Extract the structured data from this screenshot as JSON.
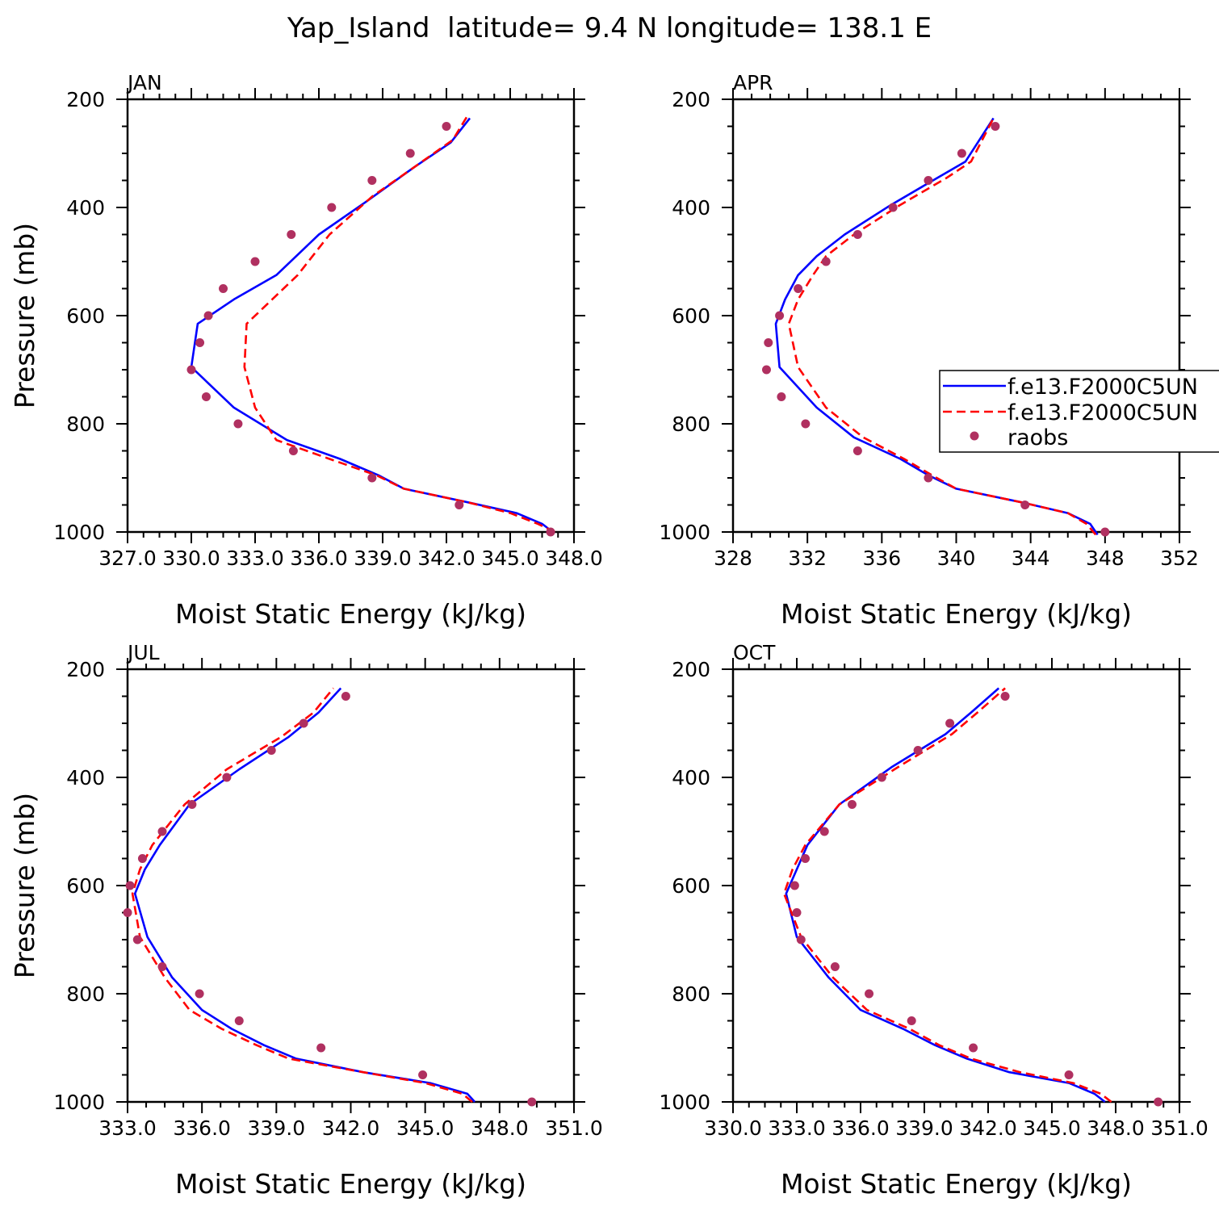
{
  "title": "Yap_Island  latitude= 9.4 N longitude= 138.1 E",
  "colors": {
    "model1": "#0000ff",
    "model2": "#ff0000",
    "raobs": "#b03060"
  },
  "legend": {
    "entries": [
      "f.e13.F2000C5UN",
      "f.e13.F2000C5UN",
      "raobs"
    ],
    "placement": "right of APR panel, partially clipped"
  },
  "chart_data": [
    {
      "type": "line",
      "panel": "JAN",
      "xlabel": "Moist Static Energy (kJ/kg)",
      "ylabel": "Pressure (mb)",
      "xlim": [
        327.0,
        348.0
      ],
      "ylim": [
        1000,
        200
      ],
      "x_ticks": [
        "327.0",
        "330.0",
        "333.0",
        "336.0",
        "339.0",
        "342.0",
        "345.0",
        "348.0"
      ],
      "y_ticks": [
        "200",
        "400",
        "600",
        "800",
        "1000"
      ],
      "series": [
        {
          "name": "f.e13.F2000C5UN",
          "style": "solid",
          "color": "#0000ff",
          "points": [
            [
              347.0,
              1000
            ],
            [
              346.5,
              985
            ],
            [
              345.3,
              965
            ],
            [
              343.0,
              945
            ],
            [
              340.0,
              920
            ],
            [
              338.8,
              895
            ],
            [
              337.0,
              865
            ],
            [
              334.5,
              830
            ],
            [
              332.0,
              770
            ],
            [
              330.0,
              695
            ],
            [
              330.3,
              615
            ],
            [
              332.0,
              570
            ],
            [
              334.0,
              525
            ],
            [
              336.0,
              450
            ],
            [
              338.2,
              390
            ],
            [
              340.5,
              325
            ],
            [
              342.2,
              280
            ],
            [
              343.1,
              235
            ]
          ]
        },
        {
          "name": "f.e13.F2000C5UN",
          "style": "dashed",
          "color": "#ff0000",
          "points": [
            [
              347.1,
              1000
            ],
            [
              346.3,
              985
            ],
            [
              345.0,
              965
            ],
            [
              343.0,
              945
            ],
            [
              340.0,
              920
            ],
            [
              338.7,
              895
            ],
            [
              336.5,
              865
            ],
            [
              334.0,
              830
            ],
            [
              333.0,
              770
            ],
            [
              332.5,
              695
            ],
            [
              332.6,
              615
            ],
            [
              333.8,
              570
            ],
            [
              335.0,
              525
            ],
            [
              336.5,
              450
            ],
            [
              338.5,
              380
            ],
            [
              340.5,
              325
            ],
            [
              342.3,
              275
            ],
            [
              343.0,
              230
            ]
          ]
        },
        {
          "name": "raobs",
          "style": "markers",
          "color": "#b03060",
          "points": [
            [
              346.9,
              1000
            ],
            [
              342.6,
              950
            ],
            [
              338.5,
              900
            ],
            [
              334.8,
              850
            ],
            [
              332.2,
              800
            ],
            [
              330.7,
              750
            ],
            [
              330.0,
              700
            ],
            [
              330.4,
              650
            ],
            [
              330.8,
              600
            ],
            [
              331.5,
              550
            ],
            [
              333.0,
              500
            ],
            [
              334.7,
              450
            ],
            [
              336.6,
              400
            ],
            [
              338.5,
              350
            ],
            [
              340.3,
              300
            ],
            [
              342.0,
              250
            ]
          ]
        }
      ]
    },
    {
      "type": "line",
      "panel": "APR",
      "xlabel": "Moist Static Energy (kJ/kg)",
      "ylabel": "",
      "xlim": [
        328,
        352
      ],
      "ylim": [
        1000,
        200
      ],
      "x_ticks": [
        "328",
        "332",
        "336",
        "340",
        "344",
        "348",
        "352"
      ],
      "y_ticks": [
        "200",
        "400",
        "600",
        "800",
        "1000"
      ],
      "series": [
        {
          "name": "f.e13.F2000C5UN",
          "style": "solid",
          "color": "#0000ff",
          "points": [
            [
              347.6,
              1005
            ],
            [
              347.2,
              985
            ],
            [
              346.0,
              965
            ],
            [
              343.5,
              945
            ],
            [
              340.0,
              920
            ],
            [
              338.5,
              895
            ],
            [
              337.0,
              865
            ],
            [
              334.5,
              825
            ],
            [
              332.5,
              770
            ],
            [
              330.5,
              695
            ],
            [
              330.3,
              615
            ],
            [
              330.8,
              570
            ],
            [
              331.5,
              525
            ],
            [
              332.5,
              490
            ],
            [
              334.0,
              450
            ],
            [
              336.5,
              395
            ],
            [
              339.0,
              345
            ],
            [
              340.5,
              315
            ],
            [
              342.0,
              235
            ]
          ]
        },
        {
          "name": "f.e13.F2000C5UN",
          "style": "dashed",
          "color": "#ff0000",
          "points": [
            [
              347.5,
              1005
            ],
            [
              347.0,
              985
            ],
            [
              346.0,
              965
            ],
            [
              343.5,
              945
            ],
            [
              340.0,
              920
            ],
            [
              338.7,
              895
            ],
            [
              337.2,
              865
            ],
            [
              335.0,
              825
            ],
            [
              333.0,
              770
            ],
            [
              331.5,
              695
            ],
            [
              331.0,
              615
            ],
            [
              331.5,
              570
            ],
            [
              332.3,
              525
            ],
            [
              333.0,
              490
            ],
            [
              334.5,
              450
            ],
            [
              337.0,
              395
            ],
            [
              339.5,
              345
            ],
            [
              340.8,
              315
            ],
            [
              342.0,
              235
            ]
          ]
        },
        {
          "name": "raobs",
          "style": "markers",
          "color": "#b03060",
          "points": [
            [
              348.0,
              1000
            ],
            [
              343.7,
              950
            ],
            [
              338.5,
              900
            ],
            [
              334.7,
              850
            ],
            [
              331.9,
              800
            ],
            [
              330.6,
              750
            ],
            [
              329.8,
              700
            ],
            [
              329.9,
              650
            ],
            [
              330.5,
              600
            ],
            [
              331.5,
              550
            ],
            [
              333.0,
              500
            ],
            [
              334.7,
              450
            ],
            [
              336.6,
              400
            ],
            [
              338.5,
              350
            ],
            [
              340.3,
              300
            ],
            [
              342.1,
              250
            ]
          ]
        }
      ]
    },
    {
      "type": "line",
      "panel": "JUL",
      "xlabel": "Moist Static Energy (kJ/kg)",
      "ylabel": "Pressure (mb)",
      "xlim": [
        333.0,
        351.0
      ],
      "ylim": [
        1000,
        200
      ],
      "x_ticks": [
        "333.0",
        "336.0",
        "339.0",
        "342.0",
        "345.0",
        "348.0",
        "351.0"
      ],
      "y_ticks": [
        "200",
        "400",
        "600",
        "800",
        "1000"
      ],
      "series": [
        {
          "name": "f.e13.F2000C5UN",
          "style": "solid",
          "color": "#0000ff",
          "points": [
            [
              347.0,
              1000
            ],
            [
              346.7,
              985
            ],
            [
              345.2,
              965
            ],
            [
              342.5,
              945
            ],
            [
              339.8,
              920
            ],
            [
              338.5,
              895
            ],
            [
              337.2,
              865
            ],
            [
              336.0,
              830
            ],
            [
              334.8,
              770
            ],
            [
              333.8,
              695
            ],
            [
              333.3,
              615
            ],
            [
              333.7,
              570
            ],
            [
              334.3,
              525
            ],
            [
              335.5,
              450
            ],
            [
              337.5,
              385
            ],
            [
              339.5,
              325
            ],
            [
              340.7,
              280
            ],
            [
              341.6,
              235
            ]
          ]
        },
        {
          "name": "f.e13.F2000C5UN",
          "style": "dashed",
          "color": "#ff0000",
          "points": [
            [
              346.9,
              1000
            ],
            [
              346.5,
              985
            ],
            [
              345.0,
              965
            ],
            [
              342.5,
              945
            ],
            [
              339.5,
              920
            ],
            [
              338.2,
              895
            ],
            [
              336.8,
              865
            ],
            [
              335.5,
              830
            ],
            [
              334.5,
              770
            ],
            [
              333.5,
              695
            ],
            [
              333.2,
              615
            ],
            [
              333.5,
              570
            ],
            [
              334.0,
              525
            ],
            [
              335.3,
              450
            ],
            [
              337.0,
              385
            ],
            [
              339.2,
              325
            ],
            [
              340.5,
              280
            ],
            [
              341.3,
              235
            ]
          ]
        },
        {
          "name": "raobs",
          "style": "markers",
          "color": "#b03060",
          "points": [
            [
              349.3,
              1000
            ],
            [
              344.9,
              950
            ],
            [
              340.8,
              900
            ],
            [
              337.5,
              850
            ],
            [
              335.9,
              800
            ],
            [
              334.4,
              750
            ],
            [
              333.4,
              700
            ],
            [
              333.0,
              650
            ],
            [
              333.1,
              600
            ],
            [
              333.6,
              550
            ],
            [
              334.4,
              500
            ],
            [
              335.6,
              450
            ],
            [
              337.0,
              400
            ],
            [
              338.8,
              350
            ],
            [
              340.1,
              300
            ],
            [
              341.8,
              250
            ]
          ]
        }
      ]
    },
    {
      "type": "line",
      "panel": "OCT",
      "xlabel": "Moist Static Energy (kJ/kg)",
      "ylabel": "",
      "xlim": [
        330.0,
        351.0
      ],
      "ylim": [
        1000,
        200
      ],
      "x_ticks": [
        "330.0",
        "333.0",
        "336.0",
        "339.0",
        "342.0",
        "345.0",
        "348.0",
        "351.0"
      ],
      "y_ticks": [
        "200",
        "400",
        "600",
        "800",
        "1000"
      ],
      "series": [
        {
          "name": "f.e13.F2000C5UN",
          "style": "solid",
          "color": "#0000ff",
          "points": [
            [
              347.5,
              1000
            ],
            [
              347.0,
              985
            ],
            [
              345.8,
              965
            ],
            [
              343.0,
              945
            ],
            [
              341.0,
              920
            ],
            [
              339.5,
              895
            ],
            [
              338.0,
              865
            ],
            [
              336.0,
              830
            ],
            [
              334.5,
              770
            ],
            [
              333.0,
              695
            ],
            [
              332.5,
              615
            ],
            [
              333.0,
              570
            ],
            [
              333.5,
              525
            ],
            [
              335.0,
              450
            ],
            [
              337.5,
              380
            ],
            [
              340.0,
              320
            ],
            [
              341.2,
              280
            ],
            [
              342.5,
              235
            ]
          ]
        },
        {
          "name": "f.e13.F2000C5UN",
          "style": "dashed",
          "color": "#ff0000",
          "points": [
            [
              347.8,
              1000
            ],
            [
              347.3,
              985
            ],
            [
              346.0,
              965
            ],
            [
              343.5,
              945
            ],
            [
              341.2,
              920
            ],
            [
              339.7,
              895
            ],
            [
              338.3,
              865
            ],
            [
              336.3,
              830
            ],
            [
              334.7,
              770
            ],
            [
              333.2,
              695
            ],
            [
              332.4,
              615
            ],
            [
              332.8,
              570
            ],
            [
              333.4,
              525
            ],
            [
              335.0,
              450
            ],
            [
              337.8,
              380
            ],
            [
              340.3,
              320
            ],
            [
              341.5,
              280
            ],
            [
              342.8,
              235
            ]
          ]
        },
        {
          "name": "raobs",
          "style": "markers",
          "color": "#b03060",
          "points": [
            [
              350.0,
              1000
            ],
            [
              345.8,
              950
            ],
            [
              341.3,
              900
            ],
            [
              338.4,
              850
            ],
            [
              336.4,
              800
            ],
            [
              334.8,
              750
            ],
            [
              333.2,
              700
            ],
            [
              333.0,
              650
            ],
            [
              332.9,
              600
            ],
            [
              333.4,
              550
            ],
            [
              334.3,
              500
            ],
            [
              335.6,
              450
            ],
            [
              337.0,
              400
            ],
            [
              338.7,
              350
            ],
            [
              340.2,
              300
            ],
            [
              342.8,
              250
            ]
          ]
        }
      ]
    }
  ]
}
